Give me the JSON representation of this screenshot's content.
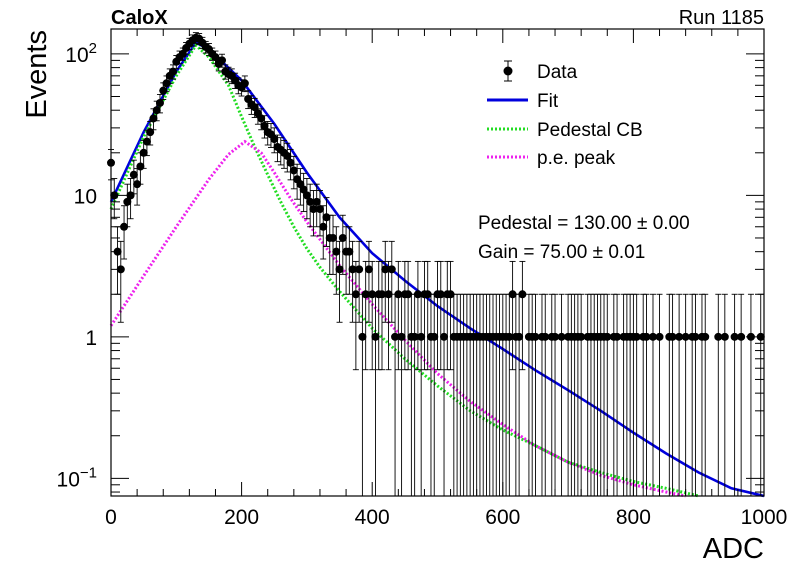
{
  "header": {
    "experiment": "CaloX",
    "run": "Run 1185"
  },
  "chart_data": {
    "type": "scatter",
    "xlabel": "ADC",
    "ylabel": "Events",
    "xlim": [
      0,
      1000
    ],
    "ylim": [
      0.075,
      150
    ],
    "yscale": "log",
    "x_ticks": [
      {
        "value": 0,
        "label": "0"
      },
      {
        "value": 200,
        "label": "200"
      },
      {
        "value": 400,
        "label": "400"
      },
      {
        "value": 600,
        "label": "600"
      },
      {
        "value": 800,
        "label": "800"
      },
      {
        "value": 1000,
        "label": "1000"
      }
    ],
    "y_ticks": [
      {
        "value": 0.1,
        "base": "10",
        "exp": "−1"
      },
      {
        "value": 1,
        "base": "1",
        "exp": ""
      },
      {
        "value": 10,
        "base": "10",
        "exp": ""
      },
      {
        "value": 100,
        "base": "10",
        "exp": "2"
      }
    ],
    "grid": false,
    "legend_position": "top-right",
    "legend": [
      {
        "label": "Data",
        "style": "marker",
        "color": "#000000"
      },
      {
        "label": "Fit",
        "style": "solid",
        "color": "#0000dd"
      },
      {
        "label": "Pedestal CB",
        "style": "dotted",
        "color": "#22dd22"
      },
      {
        "label": "p.e. peak",
        "style": "dotted",
        "color": "#ee22ee"
      }
    ],
    "annotations": [
      "Pedestal = 130.00 ± 0.00",
      "Gain = 75.00 ± 0.01"
    ],
    "series": [
      {
        "name": "Data",
        "color": "#000000",
        "points": [
          [
            0,
            17
          ],
          [
            5,
            10
          ],
          [
            10,
            4
          ],
          [
            15,
            3
          ],
          [
            20,
            6
          ],
          [
            25,
            9
          ],
          [
            30,
            10
          ],
          [
            35,
            14
          ],
          [
            40,
            12
          ],
          [
            45,
            16
          ],
          [
            50,
            20
          ],
          [
            55,
            24
          ],
          [
            60,
            28
          ],
          [
            65,
            35
          ],
          [
            70,
            40
          ],
          [
            75,
            45
          ],
          [
            80,
            55
          ],
          [
            85,
            62
          ],
          [
            90,
            70
          ],
          [
            95,
            75
          ],
          [
            100,
            88
          ],
          [
            105,
            95
          ],
          [
            110,
            100
          ],
          [
            115,
            110
          ],
          [
            120,
            118
          ],
          [
            125,
            125
          ],
          [
            130,
            130
          ],
          [
            135,
            128
          ],
          [
            140,
            120
          ],
          [
            145,
            112
          ],
          [
            150,
            108
          ],
          [
            155,
            100
          ],
          [
            160,
            95
          ],
          [
            165,
            85
          ],
          [
            170,
            90
          ],
          [
            175,
            75
          ],
          [
            180,
            72
          ],
          [
            185,
            70
          ],
          [
            190,
            65
          ],
          [
            195,
            60
          ],
          [
            200,
            58
          ],
          [
            205,
            62
          ],
          [
            210,
            48
          ],
          [
            215,
            44
          ],
          [
            220,
            42
          ],
          [
            225,
            38
          ],
          [
            230,
            35
          ],
          [
            235,
            31
          ],
          [
            240,
            28
          ],
          [
            245,
            27
          ],
          [
            250,
            25
          ],
          [
            255,
            22
          ],
          [
            260,
            21
          ],
          [
            265,
            20
          ],
          [
            270,
            19
          ],
          [
            275,
            17
          ],
          [
            280,
            15
          ],
          [
            285,
            13
          ],
          [
            290,
            12
          ],
          [
            295,
            11
          ],
          [
            300,
            10
          ],
          [
            305,
            9
          ],
          [
            310,
            8
          ],
          [
            315,
            9
          ],
          [
            320,
            8
          ],
          [
            325,
            6
          ],
          [
            330,
            7
          ],
          [
            335,
            5
          ],
          [
            340,
            5
          ],
          [
            345,
            4
          ],
          [
            350,
            3
          ],
          [
            355,
            5
          ],
          [
            360,
            4
          ],
          [
            365,
            4
          ],
          [
            370,
            3
          ],
          [
            375,
            2
          ],
          [
            380,
            3
          ],
          [
            385,
            1
          ],
          [
            390,
            2
          ],
          [
            395,
            3
          ],
          [
            400,
            2
          ],
          [
            405,
            1
          ],
          [
            410,
            2
          ],
          [
            415,
            2
          ],
          [
            420,
            3
          ],
          [
            425,
            2
          ],
          [
            430,
            3
          ],
          [
            435,
            1
          ],
          [
            440,
            2
          ],
          [
            445,
            1
          ],
          [
            450,
            2
          ],
          [
            455,
            2
          ],
          [
            460,
            1
          ],
          [
            465,
            1
          ],
          [
            470,
            2
          ],
          [
            475,
            1
          ],
          [
            480,
            2
          ],
          [
            485,
            2
          ],
          [
            490,
            1
          ],
          [
            495,
            1
          ],
          [
            500,
            2
          ],
          [
            505,
            2
          ],
          [
            510,
            1
          ],
          [
            515,
            2
          ],
          [
            520,
            2
          ],
          [
            525,
            1
          ],
          [
            530,
            1
          ],
          [
            535,
            1
          ],
          [
            540,
            1
          ],
          [
            545,
            1
          ],
          [
            550,
            1
          ],
          [
            555,
            1
          ],
          [
            560,
            1
          ],
          [
            565,
            1
          ],
          [
            570,
            1
          ],
          [
            575,
            1
          ],
          [
            580,
            1
          ],
          [
            585,
            1
          ],
          [
            590,
            1
          ],
          [
            595,
            1
          ],
          [
            600,
            1
          ],
          [
            605,
            1
          ],
          [
            610,
            1
          ],
          [
            615,
            2
          ],
          [
            620,
            1
          ],
          [
            625,
            1
          ],
          [
            630,
            2
          ],
          [
            640,
            1
          ],
          [
            645,
            1
          ],
          [
            650,
            1
          ],
          [
            660,
            1
          ],
          [
            665,
            1
          ],
          [
            675,
            1
          ],
          [
            680,
            1
          ],
          [
            690,
            1
          ],
          [
            700,
            1
          ],
          [
            705,
            1
          ],
          [
            710,
            1
          ],
          [
            715,
            1
          ],
          [
            720,
            1
          ],
          [
            730,
            1
          ],
          [
            735,
            1
          ],
          [
            740,
            1
          ],
          [
            745,
            1
          ],
          [
            750,
            1
          ],
          [
            755,
            1
          ],
          [
            760,
            1
          ],
          [
            770,
            1
          ],
          [
            775,
            1
          ],
          [
            785,
            1
          ],
          [
            790,
            1
          ],
          [
            795,
            1
          ],
          [
            800,
            1
          ],
          [
            805,
            1
          ],
          [
            815,
            1
          ],
          [
            820,
            1
          ],
          [
            830,
            1
          ],
          [
            840,
            1
          ],
          [
            855,
            1
          ],
          [
            860,
            1
          ],
          [
            870,
            1
          ],
          [
            880,
            1
          ],
          [
            890,
            1
          ],
          [
            895,
            1
          ],
          [
            905,
            1
          ],
          [
            910,
            1
          ],
          [
            930,
            1
          ],
          [
            940,
            1
          ],
          [
            955,
            1
          ],
          [
            965,
            1
          ],
          [
            980,
            1
          ],
          [
            995,
            1
          ]
        ]
      },
      {
        "name": "Fit",
        "color": "#0000dd",
        "points": [
          [
            0,
            9
          ],
          [
            50,
            28
          ],
          [
            100,
            75
          ],
          [
            130,
            120
          ],
          [
            150,
            108
          ],
          [
            200,
            65
          ],
          [
            250,
            32
          ],
          [
            300,
            14.5
          ],
          [
            350,
            7
          ],
          [
            400,
            3.9
          ],
          [
            450,
            2.5
          ],
          [
            500,
            1.65
          ],
          [
            550,
            1.15
          ],
          [
            600,
            0.82
          ],
          [
            650,
            0.58
          ],
          [
            700,
            0.42
          ],
          [
            750,
            0.3
          ],
          [
            800,
            0.21
          ],
          [
            850,
            0.15
          ],
          [
            900,
            0.11
          ],
          [
            950,
            0.085
          ],
          [
            1000,
            0.075
          ]
        ]
      },
      {
        "name": "Pedestal CB",
        "color": "#22dd22",
        "points": [
          [
            0,
            8
          ],
          [
            50,
            26
          ],
          [
            100,
            70
          ],
          [
            130,
            115
          ],
          [
            150,
            95
          ],
          [
            180,
            60
          ],
          [
            200,
            36
          ],
          [
            220,
            22
          ],
          [
            240,
            14
          ],
          [
            260,
            9
          ],
          [
            280,
            6
          ],
          [
            300,
            4.2
          ],
          [
            320,
            3.1
          ],
          [
            350,
            2.1
          ],
          [
            400,
            1.15
          ],
          [
            450,
            0.7
          ],
          [
            500,
            0.45
          ],
          [
            550,
            0.3
          ],
          [
            600,
            0.22
          ],
          [
            650,
            0.17
          ],
          [
            700,
            0.13
          ],
          [
            750,
            0.11
          ],
          [
            800,
            0.095
          ],
          [
            850,
            0.085
          ],
          [
            900,
            0.075
          ]
        ]
      },
      {
        "name": "p.e. peak",
        "color": "#ee22ee",
        "points": [
          [
            0,
            1.2
          ],
          [
            50,
            2.7
          ],
          [
            100,
            6
          ],
          [
            150,
            13
          ],
          [
            180,
            19.5
          ],
          [
            205,
            24
          ],
          [
            230,
            20
          ],
          [
            250,
            14.5
          ],
          [
            275,
            9.5
          ],
          [
            300,
            6.5
          ],
          [
            350,
            3.2
          ],
          [
            400,
            1.7
          ],
          [
            450,
            0.95
          ],
          [
            500,
            0.55
          ],
          [
            550,
            0.35
          ],
          [
            600,
            0.24
          ],
          [
            650,
            0.17
          ],
          [
            700,
            0.13
          ],
          [
            750,
            0.105
          ],
          [
            800,
            0.09
          ],
          [
            850,
            0.08
          ],
          [
            880,
            0.075
          ]
        ]
      }
    ]
  }
}
